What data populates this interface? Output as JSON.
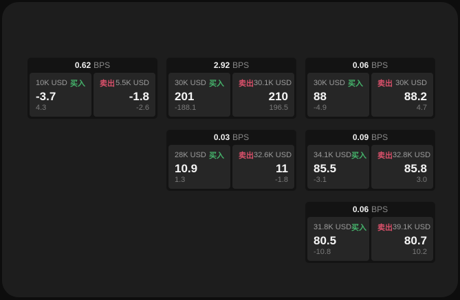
{
  "labels": {
    "bps_suffix": "BPS",
    "buy": "买入",
    "sell": "卖出"
  },
  "colors": {
    "buy_green": "#45b36b",
    "sell_red": "#d9506a",
    "window_bg": "#1d1d1d",
    "card_bg": "#131313",
    "panel_bg": "#262626"
  },
  "cards": [
    {
      "bps": "0.62",
      "buy": {
        "amount": "10K USD",
        "value": "-3.7",
        "delta": "4.3"
      },
      "sell": {
        "amount": "5.5K USD",
        "value": "-1.8",
        "delta": "-2.6"
      }
    },
    {
      "bps": "2.92",
      "buy": {
        "amount": "30K USD",
        "value": "201",
        "delta": "-188.1"
      },
      "sell": {
        "amount": "30.1K USD",
        "value": "210",
        "delta": "196.5"
      }
    },
    {
      "bps": "0.06",
      "buy": {
        "amount": "30K USD",
        "value": "88",
        "delta": "-4.9"
      },
      "sell": {
        "amount": "30K USD",
        "value": "88.2",
        "delta": "4.7"
      }
    },
    {
      "bps": "0.03",
      "buy": {
        "amount": "28K USD",
        "value": "10.9",
        "delta": "1.3"
      },
      "sell": {
        "amount": "32.6K USD",
        "value": "11",
        "delta": "-1.8"
      }
    },
    {
      "bps": "0.09",
      "buy": {
        "amount": "34.1K USD",
        "value": "85.5",
        "delta": "-3.1"
      },
      "sell": {
        "amount": "32.8K USD",
        "value": "85.8",
        "delta": "3.0"
      }
    },
    {
      "bps": "0.06",
      "buy": {
        "amount": "31.8K USD",
        "value": "80.5",
        "delta": "-10.8"
      },
      "sell": {
        "amount": "39.1K USD",
        "value": "80.7",
        "delta": "10.2"
      }
    }
  ]
}
